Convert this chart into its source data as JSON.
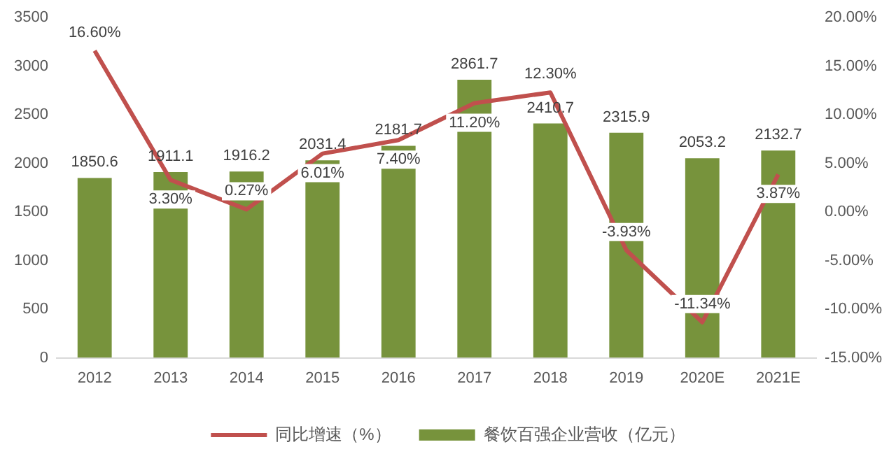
{
  "chart_data": {
    "type": "bar",
    "categories": [
      "2012",
      "2013",
      "2014",
      "2015",
      "2016",
      "2017",
      "2018",
      "2019",
      "2020E",
      "2021E"
    ],
    "series": [
      {
        "name": "餐饮百强企业营收（亿元）",
        "color": "#77933c",
        "values": [
          1850.6,
          1911.1,
          1916.2,
          2031.4,
          2181.7,
          2861.7,
          2410.7,
          2315.9,
          2053.2,
          2132.7
        ],
        "value_labels": [
          "1850.6",
          "1911.1",
          "1916.2",
          "2031.4",
          "2181.7",
          "2861.7",
          "2410.7",
          "2315.9",
          "2053.2",
          "2132.7"
        ]
      },
      {
        "name": "同比增速（%）",
        "type": "line",
        "axis": "y2",
        "color": "#c0504d",
        "values": [
          16.6,
          3.3,
          0.27,
          6.01,
          7.4,
          11.2,
          12.3,
          -3.93,
          -11.34,
          3.87
        ],
        "value_labels": [
          "16.60%",
          "3.30%",
          "0.27%",
          "6.01%",
          "7.40%",
          "11.20%",
          "12.30%",
          "-3.93%",
          "-11.34%",
          "3.87%"
        ]
      }
    ],
    "ylim": [
      0,
      3500
    ],
    "yticks": [
      0,
      500,
      1000,
      1500,
      2000,
      2500,
      3000,
      3500
    ],
    "y2lim": [
      -15,
      20
    ],
    "y2ticks": [
      {
        "value": -15,
        "label": "-15.00%"
      },
      {
        "value": -10,
        "label": "-10.00%"
      },
      {
        "value": -5,
        "label": "-5.00%"
      },
      {
        "value": 0,
        "label": "0.00%"
      },
      {
        "value": 5,
        "label": "5.00%"
      },
      {
        "value": 10,
        "label": "10.00%"
      },
      {
        "value": 15,
        "label": "15.00%"
      },
      {
        "value": 20,
        "label": "20.00%"
      }
    ],
    "legend": "bottom",
    "grid": false,
    "marker": "none",
    "line_style": "solid"
  }
}
